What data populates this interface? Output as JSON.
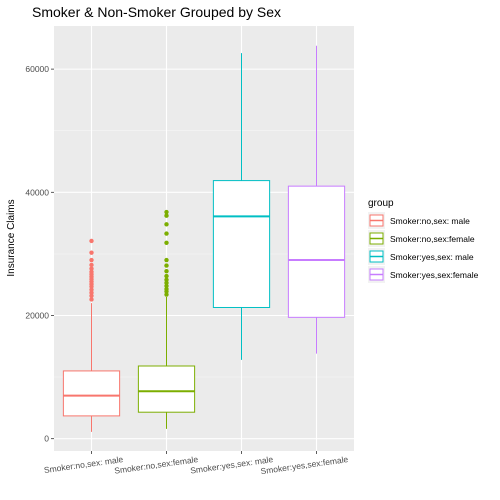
{
  "chart_data": {
    "type": "boxplot",
    "title": "Smoker & Non-Smoker Grouped by Sex",
    "xlabel": "",
    "ylabel": "Insurance Claims",
    "ylim": [
      -2000,
      67000
    ],
    "yticks": [
      0,
      20000,
      40000,
      60000
    ],
    "ytick_labels": [
      "0",
      "20000",
      "40000",
      "60000"
    ],
    "grid": true,
    "legend": {
      "title": "group",
      "position": "right"
    },
    "categories": [
      "Smoker:no,sex:  male",
      "Smoker:no,sex:female",
      "Smoker:yes,sex:  male",
      "Smoker:yes,sex:female"
    ],
    "series": [
      {
        "name": "Smoker:no,sex:  male",
        "color": "#F8766D",
        "whisker_low": 1100,
        "q1": 3700,
        "median": 7000,
        "q3": 11000,
        "whisker_high": 22000,
        "outliers": [
          22600,
          23200,
          23700,
          24200,
          24700,
          25100,
          25500,
          25900,
          26300,
          26700,
          27100,
          27600,
          28200,
          29000,
          30200,
          32100
        ]
      },
      {
        "name": "Smoker:no,sex:female",
        "color": "#7CAE00",
        "whisker_low": 1600,
        "q1": 4300,
        "median": 7700,
        "q3": 11800,
        "whisker_high": 23000,
        "outliers": [
          23400,
          23900,
          24300,
          24800,
          25300,
          25800,
          26400,
          27200,
          28100,
          29000,
          31800,
          33300,
          34800,
          36200,
          36800
        ]
      },
      {
        "name": "Smoker:yes,sex:  male",
        "color": "#00BFC4",
        "whisker_low": 12800,
        "q1": 21300,
        "median": 36100,
        "q3": 41900,
        "whisker_high": 62600,
        "outliers": []
      },
      {
        "name": "Smoker:yes,sex:female",
        "color": "#C77CFF",
        "whisker_low": 13800,
        "q1": 19700,
        "median": 29000,
        "q3": 41000,
        "whisker_high": 63800,
        "outliers": []
      }
    ]
  }
}
